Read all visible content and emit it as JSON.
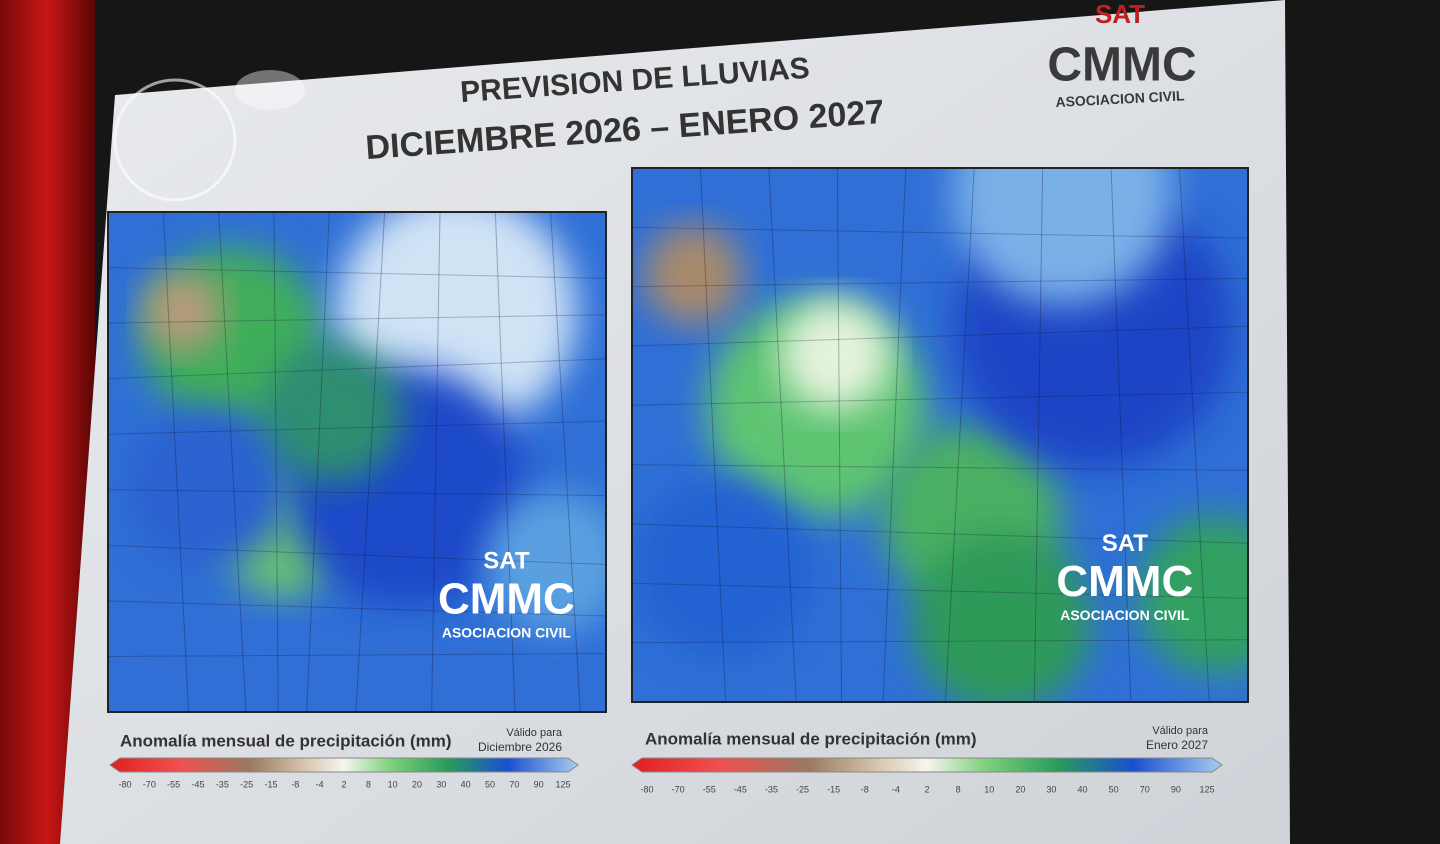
{
  "header": {
    "title_line1": "PREVISION DE LLUVIAS",
    "title_line2": "DICIEMBRE 2026 – ENERO 2027"
  },
  "logo": {
    "sat": "SAT",
    "name": "CMMC",
    "subtitle": "ASOCIACION CIVIL"
  },
  "maps": [
    {
      "legend_title": "Anomalía mensual de precipitación (mm)",
      "valid_label": "Válido para",
      "valid_period": "Diciembre 2026",
      "scale": [
        -80,
        -70,
        -55,
        -45,
        -35,
        -25,
        -15,
        -8,
        -4,
        2,
        8,
        10,
        20,
        30,
        40,
        50,
        70,
        90,
        125
      ]
    },
    {
      "legend_title": "Anomalía mensual de precipitación (mm)",
      "valid_label": "Válido para",
      "valid_period": "Enero 2027",
      "scale": [
        -80,
        -70,
        -55,
        -45,
        -35,
        -25,
        -15,
        -8,
        -4,
        2,
        8,
        10,
        20,
        30,
        40,
        50,
        70,
        90,
        125
      ]
    }
  ]
}
